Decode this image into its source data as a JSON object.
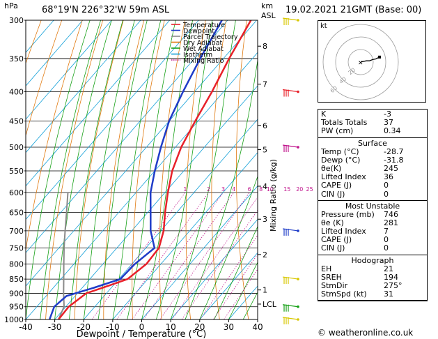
{
  "header": {
    "location": "68°19'N  226°32'W  59m  ASL",
    "datetime": "19.02.2021  21GMT  (Base: 00)",
    "hpa_unit": "hPa",
    "km_unit": "km",
    "asl_unit": "ASL"
  },
  "legend": {
    "items": [
      {
        "label": "Temperature",
        "color": "#e8212a"
      },
      {
        "label": "Dewpoint",
        "color": "#1f3cc8"
      },
      {
        "label": "Parcel Trajectory",
        "color": "#8a8a8a"
      },
      {
        "label": "Dry Adiabat",
        "color": "#e07a10"
      },
      {
        "label": "Wet Adiabat",
        "color": "#16a016"
      },
      {
        "label": "Isotherm",
        "color": "#12a0d8"
      },
      {
        "label": "Mixing Ratio",
        "color": "#c0148c"
      }
    ]
  },
  "chart_data": {
    "type": "skew-t",
    "xlabel": "Dewpoint / Temperature (°C)",
    "ylabel_right": "Mixing Ratio (g/kg)",
    "x_ticks": [
      -40,
      -30,
      -20,
      -10,
      0,
      10,
      20,
      30,
      40
    ],
    "pressure_levels": [
      300,
      350,
      400,
      450,
      500,
      550,
      600,
      650,
      700,
      750,
      800,
      850,
      900,
      950,
      1000
    ],
    "altitude_ticks": [
      {
        "label": "8",
        "p": 333
      },
      {
        "label": "7",
        "p": 388
      },
      {
        "label": "6",
        "p": 458
      },
      {
        "label": "5",
        "p": 505
      },
      {
        "label": "4",
        "p": 585
      },
      {
        "label": "3",
        "p": 668
      },
      {
        "label": "2",
        "p": 770
      },
      {
        "label": "1",
        "p": 888
      },
      {
        "label": "LCL",
        "p": 940
      }
    ],
    "mixing_ratio_labels": [
      "1",
      "2",
      "3",
      "4",
      "6",
      "8",
      "10",
      "15",
      "20",
      "25"
    ],
    "mixing_ratio_values": [
      1,
      2,
      3,
      4,
      6,
      8,
      10,
      15,
      20,
      25
    ],
    "temperature": [
      {
        "p": 300,
        "t": -52
      },
      {
        "p": 350,
        "t": -48
      },
      {
        "p": 400,
        "t": -44
      },
      {
        "p": 450,
        "t": -41
      },
      {
        "p": 500,
        "t": -38
      },
      {
        "p": 550,
        "t": -34
      },
      {
        "p": 600,
        "t": -29
      },
      {
        "p": 650,
        "t": -24
      },
      {
        "p": 700,
        "t": -19
      },
      {
        "p": 750,
        "t": -15.5
      },
      {
        "p": 800,
        "t": -15
      },
      {
        "p": 850,
        "t": -17
      },
      {
        "p": 870,
        "t": -21
      },
      {
        "p": 900,
        "t": -27
      },
      {
        "p": 950,
        "t": -29
      },
      {
        "p": 1000,
        "t": -28.7
      }
    ],
    "dewpoint": [
      {
        "p": 300,
        "t": -62
      },
      {
        "p": 350,
        "t": -58
      },
      {
        "p": 400,
        "t": -54
      },
      {
        "p": 450,
        "t": -50
      },
      {
        "p": 500,
        "t": -45
      },
      {
        "p": 550,
        "t": -40
      },
      {
        "p": 600,
        "t": -35
      },
      {
        "p": 650,
        "t": -29
      },
      {
        "p": 700,
        "t": -23.5
      },
      {
        "p": 750,
        "t": -17
      },
      {
        "p": 800,
        "t": -19
      },
      {
        "p": 850,
        "t": -19.5
      },
      {
        "p": 880,
        "t": -26
      },
      {
        "p": 910,
        "t": -33
      },
      {
        "p": 950,
        "t": -34
      },
      {
        "p": 1000,
        "t": -31.8
      }
    ],
    "parcel": [
      {
        "p": 1000,
        "t": -28.7
      },
      {
        "p": 950,
        "t": -30.6
      },
      {
        "p": 900,
        "t": -34.8
      },
      {
        "p": 850,
        "t": -39
      },
      {
        "p": 800,
        "t": -43.5
      },
      {
        "p": 750,
        "t": -48.2
      },
      {
        "p": 700,
        "t": -53
      },
      {
        "p": 650,
        "t": -58
      },
      {
        "p": 600,
        "t": -63.5
      }
    ]
  },
  "hodograph": {
    "label": "kt",
    "ring_labels": [
      "20",
      "40",
      "60"
    ],
    "trace_kt": [
      [
        0,
        0
      ],
      [
        4,
        1
      ],
      [
        9,
        2
      ],
      [
        14,
        2
      ],
      [
        19,
        4
      ],
      [
        24,
        5
      ],
      [
        30,
        8
      ]
    ]
  },
  "wind_barbs": [
    {
      "p": 300,
      "color": "#d8c800"
    },
    {
      "p": 400,
      "color": "#e8212a"
    },
    {
      "p": 500,
      "color": "#c0148c"
    },
    {
      "p": 700,
      "color": "#1f3cc8"
    },
    {
      "p": 850,
      "color": "#d8c800"
    },
    {
      "p": 950,
      "color": "#16a016"
    },
    {
      "p": 1000,
      "color": "#d8c800"
    }
  ],
  "indices": {
    "basic": [
      {
        "label": "K",
        "value": "-3"
      },
      {
        "label": "Totals Totals",
        "value": "37"
      },
      {
        "label": "PW (cm)",
        "value": "0.34"
      }
    ],
    "surface_title": "Surface",
    "surface": [
      {
        "label": "Temp (°C)",
        "value": "-28.7"
      },
      {
        "label": "Dewp (°C)",
        "value": "-31.8"
      },
      {
        "label": "θe(K)",
        "value": "245"
      },
      {
        "label": "Lifted Index",
        "value": "36"
      },
      {
        "label": "CAPE (J)",
        "value": "0"
      },
      {
        "label": "CIN (J)",
        "value": "0"
      }
    ],
    "unstable_title": "Most Unstable",
    "unstable": [
      {
        "label": "Pressure (mb)",
        "value": "746"
      },
      {
        "label": "θe (K)",
        "value": "281"
      },
      {
        "label": "Lifted Index",
        "value": "7"
      },
      {
        "label": "CAPE (J)",
        "value": "0"
      },
      {
        "label": "CIN (J)",
        "value": "0"
      }
    ],
    "hodo_title": "Hodograph",
    "hodo": [
      {
        "label": "EH",
        "value": "21"
      },
      {
        "label": "SREH",
        "value": "194"
      },
      {
        "label": "StmDir",
        "value": "275°"
      },
      {
        "label": "StmSpd (kt)",
        "value": "31"
      }
    ]
  },
  "footer": {
    "copyright": "© weatheronline.co.uk"
  }
}
